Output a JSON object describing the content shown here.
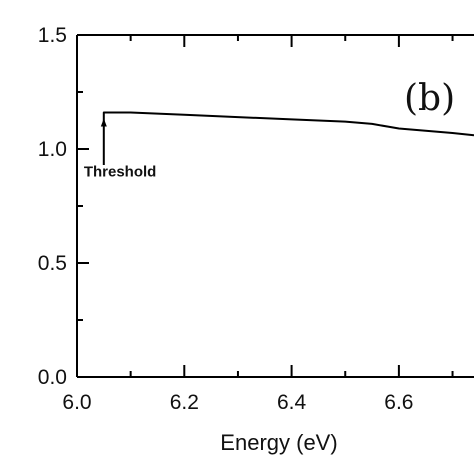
{
  "chart_data": {
    "type": "line",
    "title": "",
    "xlabel": "Energy (eV)",
    "ylabel": "",
    "xlim": [
      6.0,
      6.74
    ],
    "ylim": [
      0.0,
      1.5
    ],
    "x_ticks": [
      6.0,
      6.2,
      6.4,
      6.6
    ],
    "x_tick_labels": [
      "6.0",
      "6.2",
      "6.4",
      "6.6"
    ],
    "y_ticks": [
      0.0,
      0.5,
      1.0,
      1.5
    ],
    "y_tick_labels": [
      "0.0",
      "0.5",
      "1.0",
      "1.5"
    ],
    "grid": false,
    "panel_label": "(b)",
    "series": [
      {
        "x": [
          6.05,
          6.05,
          6.1,
          6.2,
          6.3,
          6.4,
          6.5,
          6.55,
          6.6,
          6.65,
          6.7,
          6.74
        ],
        "y": [
          0.93,
          1.16,
          1.16,
          1.15,
          1.14,
          1.13,
          1.12,
          1.11,
          1.09,
          1.08,
          1.07,
          1.06
        ]
      }
    ],
    "annotations": [
      {
        "text": "Threshold",
        "x": 6.05,
        "y": 0.88
      }
    ]
  }
}
